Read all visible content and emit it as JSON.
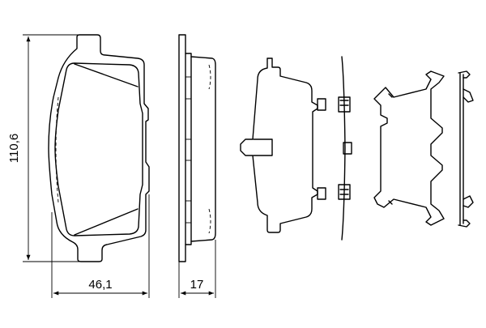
{
  "dimensions": {
    "height_label": "110,6",
    "width_label": "46,1",
    "thickness_label": "17"
  },
  "colors": {
    "line": "#000000",
    "background": "#ffffff"
  }
}
